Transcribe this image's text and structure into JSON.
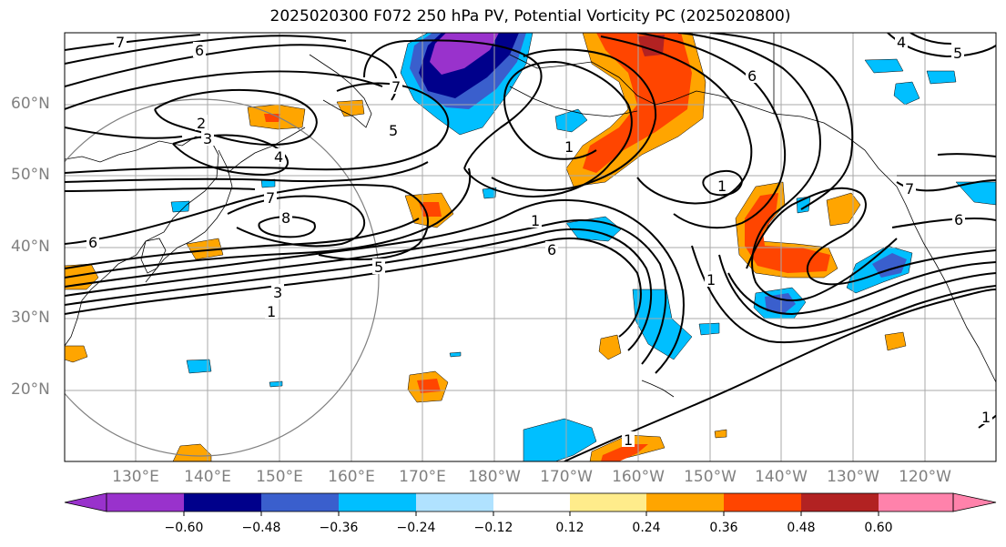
{
  "title": "2025020300 F072 250 hPa PV, Potential Vorticity PC (2025020800)",
  "lat_labels": [
    "60°N",
    "50°N",
    "40°N",
    "30°N",
    "20°N"
  ],
  "lon_labels": [
    "130°E",
    "140°E",
    "150°E",
    "160°E",
    "170°E",
    "180°W",
    "170°W",
    "160°W",
    "150°W",
    "140°W",
    "130°W",
    "120°W"
  ],
  "colorbar": {
    "colors": [
      "#9932cc",
      "#00008b",
      "#3a5fcd",
      "#00bfff",
      "#b0e2ff",
      "#ffffff",
      "#ffec8b",
      "#ffa500",
      "#ff4500",
      "#b22222",
      "#ff82ab"
    ],
    "ticks": [
      "−0.60",
      "−0.48",
      "−0.36",
      "−0.24",
      "−0.12",
      "0.12",
      "0.24",
      "0.36",
      "0.48",
      "0.60"
    ]
  },
  "contour_labels": [
    "7",
    "6",
    "2",
    "3",
    "4",
    "7",
    "8",
    "6",
    "5",
    "3",
    "1",
    "5",
    "7",
    "1",
    "1",
    "6",
    "6",
    "1",
    "1",
    "4",
    "5",
    "6",
    "1",
    "1",
    "7"
  ],
  "range_ring_color": "#808080",
  "positive_pv_color": "#ff4500",
  "negative_pv_color": "#00bfff"
}
